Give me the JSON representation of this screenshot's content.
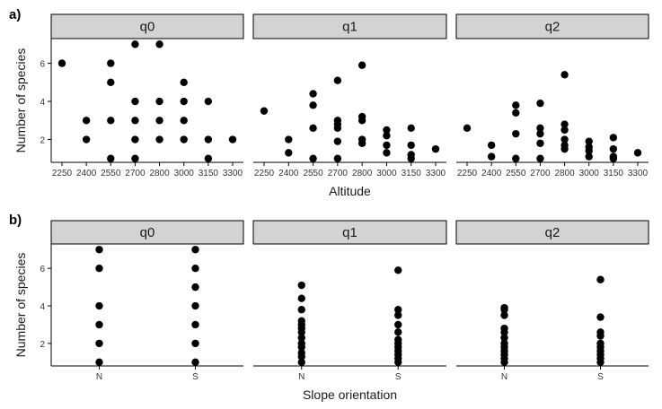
{
  "chart_data": [
    {
      "type": "scatter",
      "tag": "a)",
      "xlabel": "Altitude",
      "ylabel": "Number of species",
      "x_ticks": [
        2250,
        2400,
        2550,
        2700,
        2800,
        3000,
        3150,
        3300
      ],
      "y_ticks": [
        2,
        4,
        6
      ],
      "ylim": [
        0.8,
        7.3
      ],
      "grid": false,
      "facets": [
        {
          "name": "q0",
          "points": [
            [
              2250,
              6
            ],
            [
              2400,
              3
            ],
            [
              2400,
              2
            ],
            [
              2550,
              6
            ],
            [
              2550,
              5
            ],
            [
              2550,
              3
            ],
            [
              2550,
              1
            ],
            [
              2700,
              7
            ],
            [
              2700,
              4
            ],
            [
              2700,
              3
            ],
            [
              2700,
              2
            ],
            [
              2700,
              1
            ],
            [
              2800,
              7
            ],
            [
              2800,
              4
            ],
            [
              2800,
              3
            ],
            [
              2800,
              2
            ],
            [
              3000,
              5
            ],
            [
              3000,
              4
            ],
            [
              3000,
              3
            ],
            [
              3000,
              2
            ],
            [
              3150,
              4
            ],
            [
              3150,
              2
            ],
            [
              3150,
              1
            ],
            [
              3300,
              2
            ]
          ]
        },
        {
          "name": "q1",
          "points": [
            [
              2250,
              3.5
            ],
            [
              2400,
              2.0
            ],
            [
              2400,
              1.3
            ],
            [
              2550,
              4.4
            ],
            [
              2550,
              3.8
            ],
            [
              2550,
              2.6
            ],
            [
              2550,
              1.0
            ],
            [
              2700,
              5.1
            ],
            [
              2700,
              3.0
            ],
            [
              2700,
              2.8
            ],
            [
              2700,
              2.6
            ],
            [
              2700,
              1.9
            ],
            [
              2700,
              1.0
            ],
            [
              2800,
              5.9
            ],
            [
              2800,
              3.2
            ],
            [
              2800,
              3.0
            ],
            [
              2800,
              2.0
            ],
            [
              2800,
              1.8
            ],
            [
              3000,
              2.5
            ],
            [
              3000,
              2.2
            ],
            [
              3000,
              1.7
            ],
            [
              3000,
              1.3
            ],
            [
              3150,
              2.6
            ],
            [
              3150,
              1.7
            ],
            [
              3150,
              1.2
            ],
            [
              3150,
              1.0
            ],
            [
              3300,
              1.5
            ]
          ]
        },
        {
          "name": "q2",
          "points": [
            [
              2250,
              2.6
            ],
            [
              2400,
              1.7
            ],
            [
              2400,
              1.1
            ],
            [
              2550,
              3.8
            ],
            [
              2550,
              3.4
            ],
            [
              2550,
              2.3
            ],
            [
              2550,
              1.0
            ],
            [
              2700,
              3.9
            ],
            [
              2700,
              2.6
            ],
            [
              2700,
              2.3
            ],
            [
              2700,
              1.8
            ],
            [
              2700,
              1.0
            ],
            [
              2800,
              5.4
            ],
            [
              2800,
              2.8
            ],
            [
              2800,
              2.5
            ],
            [
              2800,
              2.0
            ],
            [
              2800,
              1.7
            ],
            [
              2800,
              1.5
            ],
            [
              3000,
              1.9
            ],
            [
              3000,
              1.6
            ],
            [
              3000,
              1.4
            ],
            [
              3000,
              1.1
            ],
            [
              3150,
              2.1
            ],
            [
              3150,
              1.5
            ],
            [
              3150,
              1.1
            ],
            [
              3150,
              1.0
            ],
            [
              3300,
              1.3
            ]
          ]
        }
      ]
    },
    {
      "type": "scatter",
      "tag": "b)",
      "xlabel": "Slope orientation",
      "ylabel": "Number of species",
      "categories": [
        "N",
        "S"
      ],
      "y_ticks": [
        2,
        4,
        6
      ],
      "ylim": [
        0.8,
        7.3
      ],
      "grid": false,
      "facets": [
        {
          "name": "q0",
          "points": [
            [
              "N",
              7
            ],
            [
              "N",
              6
            ],
            [
              "N",
              4
            ],
            [
              "N",
              3
            ],
            [
              "N",
              2
            ],
            [
              "N",
              1
            ],
            [
              "S",
              7
            ],
            [
              "S",
              6
            ],
            [
              "S",
              5
            ],
            [
              "S",
              4
            ],
            [
              "S",
              3
            ],
            [
              "S",
              2
            ],
            [
              "S",
              1
            ]
          ]
        },
        {
          "name": "q1",
          "points": [
            [
              "N",
              5.1
            ],
            [
              "N",
              4.4
            ],
            [
              "N",
              3.8
            ],
            [
              "N",
              3.2
            ],
            [
              "N",
              3.0
            ],
            [
              "N",
              2.8
            ],
            [
              "N",
              2.6
            ],
            [
              "N",
              2.3
            ],
            [
              "N",
              2.0
            ],
            [
              "N",
              1.8
            ],
            [
              "N",
              1.5
            ],
            [
              "N",
              1.3
            ],
            [
              "N",
              1.0
            ],
            [
              "S",
              5.9
            ],
            [
              "S",
              3.8
            ],
            [
              "S",
              3.5
            ],
            [
              "S",
              3.0
            ],
            [
              "S",
              2.6
            ],
            [
              "S",
              2.2
            ],
            [
              "S",
              2.0
            ],
            [
              "S",
              1.8
            ],
            [
              "S",
              1.6
            ],
            [
              "S",
              1.4
            ],
            [
              "S",
              1.2
            ],
            [
              "S",
              1.0
            ]
          ]
        },
        {
          "name": "q2",
          "points": [
            [
              "N",
              3.9
            ],
            [
              "N",
              3.8
            ],
            [
              "N",
              3.5
            ],
            [
              "N",
              2.8
            ],
            [
              "N",
              2.6
            ],
            [
              "N",
              2.3
            ],
            [
              "N",
              2.0
            ],
            [
              "N",
              1.8
            ],
            [
              "N",
              1.6
            ],
            [
              "N",
              1.4
            ],
            [
              "N",
              1.2
            ],
            [
              "N",
              1.0
            ],
            [
              "S",
              5.4
            ],
            [
              "S",
              3.4
            ],
            [
              "S",
              2.6
            ],
            [
              "S",
              2.4
            ],
            [
              "S",
              2.0
            ],
            [
              "S",
              1.8
            ],
            [
              "S",
              1.6
            ],
            [
              "S",
              1.4
            ],
            [
              "S",
              1.2
            ],
            [
              "S",
              1.0
            ]
          ]
        }
      ]
    }
  ]
}
